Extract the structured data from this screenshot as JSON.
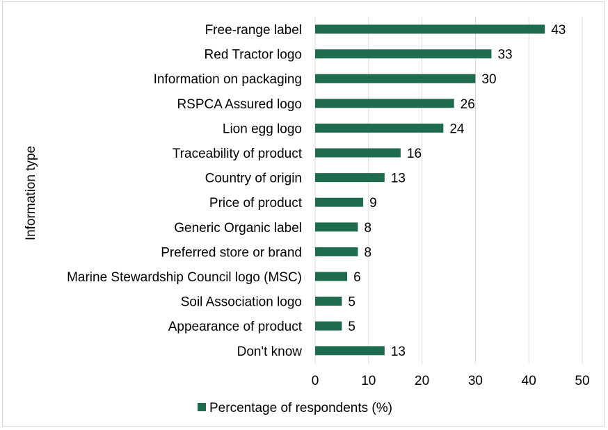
{
  "chart_data": {
    "type": "bar",
    "orientation": "horizontal",
    "categories": [
      "Free-range label",
      "Red Tractor logo",
      "Information on packaging",
      "RSPCA Assured logo",
      "Lion egg logo",
      "Traceability of product",
      "Country of origin",
      "Price of product",
      "Generic Organic label",
      "Preferred store or brand",
      "Marine Stewardship Council logo (MSC)",
      "Soil Association logo",
      "Appearance of product",
      "Don't know"
    ],
    "series": [
      {
        "name": "Percentage of respondents (%)",
        "values": [
          43,
          33,
          30,
          26,
          24,
          16,
          13,
          9,
          8,
          8,
          6,
          5,
          5,
          13
        ],
        "color": "#1f6b4e"
      }
    ],
    "xlabel": "",
    "ylabel": "Information type",
    "xlim": [
      0,
      50
    ],
    "xticks": [
      0,
      10,
      20,
      30,
      40,
      50
    ],
    "grid": "vertical",
    "legend": "bottom"
  }
}
